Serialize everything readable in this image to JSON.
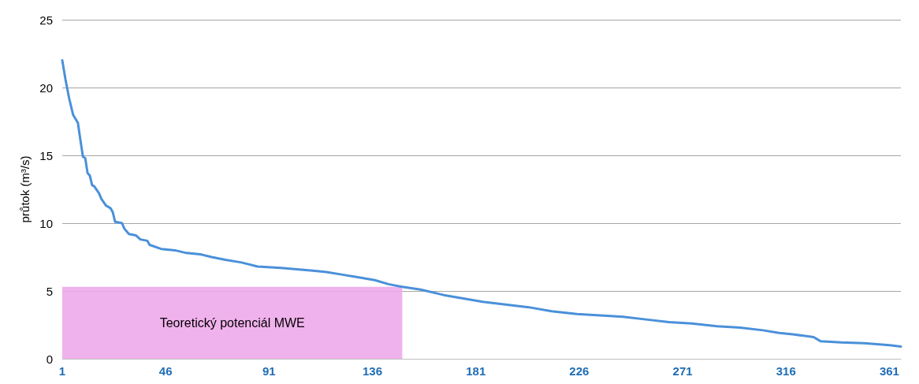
{
  "chart_data": {
    "type": "line",
    "ylabel": "průtok (m³/s)",
    "x": [
      1,
      2.4,
      4,
      5.7,
      7.8,
      9,
      10,
      11,
      12,
      13,
      14,
      15,
      17,
      18,
      20,
      22,
      23,
      24,
      27,
      28,
      30,
      33,
      35,
      38,
      39,
      44,
      50,
      55,
      61,
      66,
      72,
      79,
      86,
      96,
      103,
      110,
      116,
      123,
      130,
      137,
      143,
      149,
      157,
      167,
      177,
      184,
      194,
      204,
      214,
      225,
      235,
      245,
      255,
      265,
      275,
      286,
      296,
      306,
      313,
      319,
      328,
      331,
      340,
      350,
      361,
      366
    ],
    "series": [
      {
        "color": "#4a90d9",
        "values": [
          22.0,
          20.6,
          19.2,
          18.0,
          17.4,
          16.0,
          14.9,
          14.8,
          13.7,
          13.5,
          12.8,
          12.7,
          12.2,
          11.8,
          11.3,
          11.1,
          10.8,
          10.1,
          10.0,
          9.6,
          9.2,
          9.1,
          8.8,
          8.7,
          8.4,
          8.1,
          8.0,
          7.8,
          7.7,
          7.5,
          7.3,
          7.1,
          6.8,
          6.7,
          6.6,
          6.5,
          6.4,
          6.2,
          6.0,
          5.8,
          5.5,
          5.3,
          5.1,
          4.7,
          4.4,
          4.2,
          4.0,
          3.8,
          3.5,
          3.3,
          3.2,
          3.1,
          2.9,
          2.7,
          2.6,
          2.4,
          2.3,
          2.1,
          1.9,
          1.8,
          1.6,
          1.3,
          1.2,
          1.15,
          1.0,
          0.9
        ]
      }
    ],
    "xlim": [
      1,
      366
    ],
    "xticks": [
      1,
      46,
      91,
      136,
      181,
      226,
      271,
      316,
      361
    ],
    "ylim": [
      0,
      25
    ],
    "yticks": [
      0,
      5,
      10,
      15,
      20,
      25
    ],
    "bands": [
      {
        "axis": "x",
        "from": 1,
        "to": 149,
        "label": "Teoretický potenciál MWE",
        "color": "#eeaaea"
      }
    ],
    "grid": "y",
    "marker": "none",
    "line_style": "solid"
  }
}
